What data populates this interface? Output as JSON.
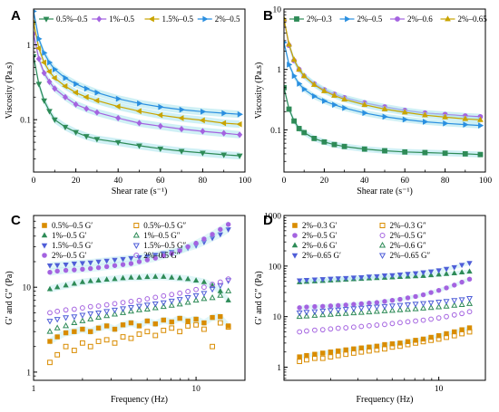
{
  "colors": {
    "green": "#2e8b57",
    "purple": "#a463e0",
    "gold": "#c9a400",
    "blue": "#2a8fe0",
    "orange": "#d98c00",
    "indigo": "#4f5ed8",
    "band": "#a8e4ec"
  },
  "chart_data": [
    {
      "panel": "A",
      "type": "line",
      "xlabel": "Shear rate (s⁻¹)",
      "ylabel": "Viscosity (Pa.s)",
      "xlim": [
        0,
        100
      ],
      "ylim": [
        0.02,
        3
      ],
      "yscale": "log",
      "xticks": [
        0,
        20,
        40,
        60,
        80,
        100
      ],
      "yticks": [
        {
          "v": 0.1,
          "label": "0.1"
        },
        {
          "v": 1,
          "label": "1"
        }
      ],
      "legend_position": "top",
      "legend_columns": 4,
      "series": [
        {
          "name": "0.5%–0.5",
          "color": "green",
          "marker": "tri-down",
          "filled": true,
          "x": [
            0,
            2.5,
            5,
            7.5,
            10,
            15,
            20,
            25,
            30,
            40,
            50,
            60,
            70,
            80,
            90,
            97.5
          ],
          "values": [
            0.7,
            0.3,
            0.18,
            0.13,
            0.1,
            0.08,
            0.068,
            0.06,
            0.055,
            0.05,
            0.045,
            0.041,
            0.038,
            0.036,
            0.034,
            0.033
          ]
        },
        {
          "name": "1%–0.5",
          "color": "purple",
          "marker": "diamond",
          "filled": true,
          "x": [
            0,
            2.5,
            5,
            7.5,
            10,
            15,
            20,
            25,
            30,
            40,
            50,
            60,
            70,
            80,
            90,
            97.5
          ],
          "values": [
            1.4,
            0.65,
            0.42,
            0.32,
            0.26,
            0.2,
            0.16,
            0.14,
            0.125,
            0.105,
            0.09,
            0.082,
            0.075,
            0.07,
            0.066,
            0.063
          ]
        },
        {
          "name": "1.5%–0.5",
          "color": "gold",
          "marker": "tri-left",
          "filled": true,
          "x": [
            0,
            2.5,
            5,
            7.5,
            10,
            15,
            20,
            25,
            30,
            40,
            50,
            60,
            70,
            80,
            90,
            97.5
          ],
          "values": [
            2.0,
            0.9,
            0.58,
            0.44,
            0.36,
            0.28,
            0.23,
            0.2,
            0.18,
            0.15,
            0.13,
            0.115,
            0.105,
            0.098,
            0.09,
            0.087
          ]
        },
        {
          "name": "2%–0.5",
          "color": "blue",
          "marker": "tri-right",
          "filled": true,
          "x": [
            0,
            2.5,
            5,
            7.5,
            10,
            15,
            20,
            25,
            30,
            40,
            50,
            60,
            70,
            80,
            90,
            97.5
          ],
          "values": [
            2.8,
            1.2,
            0.78,
            0.58,
            0.47,
            0.36,
            0.3,
            0.26,
            0.23,
            0.19,
            0.165,
            0.148,
            0.136,
            0.128,
            0.122,
            0.118
          ]
        }
      ]
    },
    {
      "panel": "B",
      "type": "line",
      "xlabel": "Shear rate (s⁻¹)",
      "ylabel": "Viscosity (Pa.s)",
      "xlim": [
        0,
        100
      ],
      "ylim": [
        0.02,
        10
      ],
      "yscale": "log",
      "xticks": [
        0,
        20,
        40,
        60,
        80,
        100
      ],
      "yticks": [
        {
          "v": 0.1,
          "label": "0.1"
        },
        {
          "v": 1,
          "label": "1"
        },
        {
          "v": 10,
          "label": "10"
        }
      ],
      "legend_position": "top",
      "legend_columns": 4,
      "series": [
        {
          "name": "2%–0.3",
          "color": "green",
          "marker": "square",
          "filled": true,
          "x": [
            0,
            2.5,
            5,
            7.5,
            10,
            15,
            20,
            25,
            30,
            40,
            50,
            60,
            70,
            80,
            90,
            97.5
          ],
          "values": [
            0.5,
            0.22,
            0.14,
            0.105,
            0.09,
            0.072,
            0.063,
            0.057,
            0.053,
            0.048,
            0.045,
            0.043,
            0.042,
            0.041,
            0.04,
            0.039
          ]
        },
        {
          "name": "2%–0.5",
          "color": "blue",
          "marker": "tri-right",
          "filled": true,
          "x": [
            0,
            2.5,
            5,
            7.5,
            10,
            15,
            20,
            25,
            30,
            40,
            50,
            60,
            70,
            80,
            90,
            97.5
          ],
          "values": [
            2.8,
            1.2,
            0.78,
            0.58,
            0.47,
            0.36,
            0.3,
            0.26,
            0.23,
            0.19,
            0.165,
            0.148,
            0.136,
            0.128,
            0.122,
            0.118
          ]
        },
        {
          "name": "2%–0.6",
          "color": "purple",
          "marker": "circle",
          "filled": true,
          "x": [
            0,
            2.5,
            5,
            7.5,
            10,
            15,
            20,
            25,
            30,
            40,
            50,
            60,
            70,
            80,
            90,
            97.5
          ],
          "values": [
            6.5,
            2.5,
            1.4,
            1.0,
            0.78,
            0.58,
            0.46,
            0.39,
            0.34,
            0.28,
            0.24,
            0.21,
            0.19,
            0.18,
            0.17,
            0.165
          ]
        },
        {
          "name": "2%–0.65",
          "color": "gold",
          "marker": "tri-up",
          "filled": true,
          "x": [
            0,
            2.5,
            5,
            7.5,
            10,
            15,
            20,
            25,
            30,
            40,
            50,
            60,
            70,
            80,
            90,
            97.5
          ],
          "values": [
            6.8,
            2.6,
            1.45,
            1.0,
            0.78,
            0.56,
            0.44,
            0.37,
            0.32,
            0.26,
            0.22,
            0.195,
            0.175,
            0.162,
            0.152,
            0.146
          ]
        }
      ]
    },
    {
      "panel": "C",
      "type": "scatter",
      "xlabel": "Frequency (Hz)",
      "ylabel": "G′ and G″ (Pa)",
      "xlim": [
        1,
        20
      ],
      "xscale": "log",
      "ylim": [
        0.8,
        70
      ],
      "yscale": "log",
      "xticks": [
        {
          "v": 1,
          "label": "1"
        },
        {
          "v": 10,
          "label": "10"
        }
      ],
      "yticks": [
        {
          "v": 1,
          "label": "1"
        },
        {
          "v": 10,
          "label": "10"
        }
      ],
      "legend_position": "top-left",
      "legend_columns": 2,
      "x": [
        1.26,
        1.4,
        1.58,
        1.78,
        2.0,
        2.24,
        2.51,
        2.82,
        3.16,
        3.55,
        3.98,
        4.47,
        5.01,
        5.62,
        6.31,
        7.08,
        7.94,
        8.91,
        10.0,
        11.2,
        12.6,
        14.1,
        15.8
      ],
      "series": [
        {
          "name": "0.5%–0.5 G′",
          "color": "orange",
          "marker": "square",
          "filled": true,
          "values": [
            2.3,
            2.6,
            2.9,
            3.0,
            3.2,
            3.0,
            3.3,
            3.5,
            3.2,
            3.6,
            3.8,
            3.5,
            4.0,
            3.7,
            4.1,
            3.9,
            4.3,
            4.0,
            4.2,
            3.8,
            4.4,
            4.5,
            3.5
          ]
        },
        {
          "name": "0.5%–0.5 G″",
          "color": "orange",
          "marker": "square",
          "filled": false,
          "values": [
            1.3,
            1.6,
            2.0,
            1.8,
            2.2,
            2.0,
            2.3,
            2.4,
            2.2,
            2.6,
            2.5,
            2.8,
            3.0,
            2.7,
            3.1,
            3.3,
            3.0,
            3.5,
            3.6,
            3.2,
            2.0,
            3.8,
            3.4
          ]
        },
        {
          "name": "1%–0.5 G′",
          "color": "green",
          "marker": "tri-up",
          "filled": true,
          "values": [
            9.5,
            10.0,
            10.5,
            11.0,
            11.5,
            11.8,
            12.0,
            12.3,
            12.5,
            12.8,
            13.0,
            13.0,
            13.2,
            13.3,
            13.3,
            13.0,
            12.8,
            12.5,
            12.0,
            11.5,
            10.5,
            9.0,
            7.0
          ]
        },
        {
          "name": "1%–0.5 G″",
          "color": "green",
          "marker": "tri-up",
          "filled": false,
          "values": [
            3.0,
            3.3,
            3.5,
            3.8,
            4.0,
            4.2,
            4.4,
            4.6,
            4.8,
            5.0,
            5.2,
            5.4,
            5.5,
            5.7,
            5.9,
            6.1,
            6.3,
            6.6,
            7.0,
            7.3,
            7.5,
            8.0,
            9.0
          ]
        },
        {
          "name": "1.5%–0.5 G′",
          "color": "indigo",
          "marker": "tri-down",
          "filled": true,
          "values": [
            18,
            18.2,
            18.5,
            19,
            19.2,
            19.5,
            20,
            20.5,
            21,
            21.5,
            22,
            22.5,
            23,
            24,
            25,
            26,
            27,
            29,
            31,
            34,
            38,
            42,
            48
          ]
        },
        {
          "name": "1.5%–0.5 G″",
          "color": "indigo",
          "marker": "tri-down",
          "filled": false,
          "values": [
            4.0,
            4.2,
            4.4,
            4.5,
            4.7,
            4.9,
            5.0,
            5.2,
            5.4,
            5.6,
            5.8,
            6.0,
            6.2,
            6.4,
            6.6,
            6.9,
            7.2,
            7.6,
            8.0,
            8.5,
            9.5,
            10.5,
            12.0
          ]
        },
        {
          "name": "2%–0.5 G′",
          "color": "purple",
          "marker": "circle",
          "filled": true,
          "values": [
            15,
            15.5,
            15.8,
            16,
            16.3,
            16.6,
            17,
            17.5,
            18,
            18.5,
            19,
            20,
            21,
            22,
            23.5,
            25,
            27,
            30,
            33,
            37,
            42,
            48,
            55
          ]
        },
        {
          "name": "2%–0.5 G″",
          "color": "purple",
          "marker": "circle",
          "filled": false,
          "values": [
            5.0,
            5.2,
            5.4,
            5.5,
            5.7,
            5.9,
            6.0,
            6.2,
            6.4,
            6.6,
            6.8,
            7.0,
            7.3,
            7.6,
            7.9,
            8.2,
            8.5,
            8.9,
            9.4,
            10.0,
            10.8,
            11.5,
            12.5
          ]
        }
      ]
    },
    {
      "panel": "D",
      "type": "scatter",
      "xlabel": "Frequency (Hz)",
      "ylabel": "G′ and G″ (Pa)",
      "xlim": [
        1,
        20
      ],
      "xscale": "log",
      "ylim": [
        0.55,
        1000
      ],
      "yscale": "log",
      "xticks": [
        {
          "v": 10,
          "label": "10"
        }
      ],
      "yticks": [
        {
          "v": 1,
          "label": "1"
        },
        {
          "v": 10,
          "label": "10"
        },
        {
          "v": 100,
          "label": "100"
        },
        {
          "v": 1000,
          "label": "1000"
        }
      ],
      "legend_position": "top-left",
      "legend_columns": 2,
      "x": [
        1.26,
        1.4,
        1.58,
        1.78,
        2.0,
        2.24,
        2.51,
        2.82,
        3.16,
        3.55,
        3.98,
        4.47,
        5.01,
        5.62,
        6.31,
        7.08,
        7.94,
        8.91,
        10.0,
        11.2,
        12.6,
        14.1,
        15.8
      ],
      "series": [
        {
          "name": "2%–0.3 G′",
          "color": "orange",
          "marker": "square",
          "filled": true,
          "values": [
            1.6,
            1.7,
            1.8,
            1.9,
            2.0,
            2.1,
            2.2,
            2.3,
            2.4,
            2.5,
            2.6,
            2.8,
            2.9,
            3.0,
            3.2,
            3.4,
            3.6,
            3.9,
            4.2,
            4.6,
            5.0,
            5.5,
            6.0
          ]
        },
        {
          "name": "2%–0.3 G″",
          "color": "orange",
          "marker": "square",
          "filled": false,
          "values": [
            1.3,
            1.4,
            1.5,
            1.5,
            1.6,
            1.7,
            1.8,
            1.9,
            2.0,
            2.1,
            2.2,
            2.3,
            2.5,
            2.6,
            2.8,
            3.0,
            3.2,
            3.4,
            3.6,
            3.9,
            4.2,
            4.6,
            5.0
          ]
        },
        {
          "name": "2%–0.5 G′",
          "color": "purple",
          "marker": "circle",
          "filled": true,
          "values": [
            15,
            15.5,
            15.8,
            16,
            16.3,
            16.6,
            17,
            17.5,
            18,
            18.5,
            19,
            20,
            21,
            22,
            23.5,
            25,
            27,
            30,
            33,
            37,
            42,
            48,
            55
          ]
        },
        {
          "name": "2%–0.5 G″",
          "color": "purple",
          "marker": "circle",
          "filled": false,
          "values": [
            5.0,
            5.2,
            5.4,
            5.5,
            5.7,
            5.9,
            6.0,
            6.2,
            6.4,
            6.6,
            6.8,
            7.0,
            7.3,
            7.6,
            7.9,
            8.2,
            8.5,
            8.9,
            9.4,
            10.0,
            10.8,
            11.5,
            12.5
          ]
        },
        {
          "name": "2%–0.6 G′",
          "color": "green",
          "marker": "tri-up",
          "filled": true,
          "values": [
            48,
            49,
            50,
            51,
            52,
            53,
            54,
            55,
            56,
            57,
            58,
            59,
            60,
            61,
            62,
            63,
            64,
            66,
            68,
            70,
            72,
            75,
            78
          ]
        },
        {
          "name": "2%–0.6 G″",
          "color": "green",
          "marker": "tri-up",
          "filled": false,
          "values": [
            10,
            10.2,
            10.5,
            10.8,
            11.0,
            11.3,
            11.5,
            11.8,
            12.0,
            12.3,
            12.6,
            12.9,
            13.2,
            13.5,
            13.8,
            14.2,
            14.6,
            15.0,
            15.5,
            16.0,
            16.6,
            17.2,
            18.0
          ]
        },
        {
          "name": "2%–0.65 G′",
          "color": "indigo",
          "marker": "tri-down",
          "filled": true,
          "values": [
            52,
            53,
            54,
            55,
            56,
            57,
            58,
            59,
            60,
            62,
            63,
            65,
            66,
            68,
            70,
            72,
            75,
            78,
            82,
            88,
            95,
            105,
            115
          ]
        },
        {
          "name": "2%–0.65 G″",
          "color": "indigo",
          "marker": "tri-down",
          "filled": false,
          "values": [
            12,
            12.3,
            12.6,
            13.0,
            13.3,
            13.6,
            14.0,
            14.4,
            14.8,
            15.2,
            15.6,
            16.0,
            16.4,
            16.8,
            17.3,
            17.8,
            18.3,
            18.9,
            19.5,
            20.2,
            21.0,
            21.8,
            23.0
          ]
        }
      ]
    }
  ]
}
